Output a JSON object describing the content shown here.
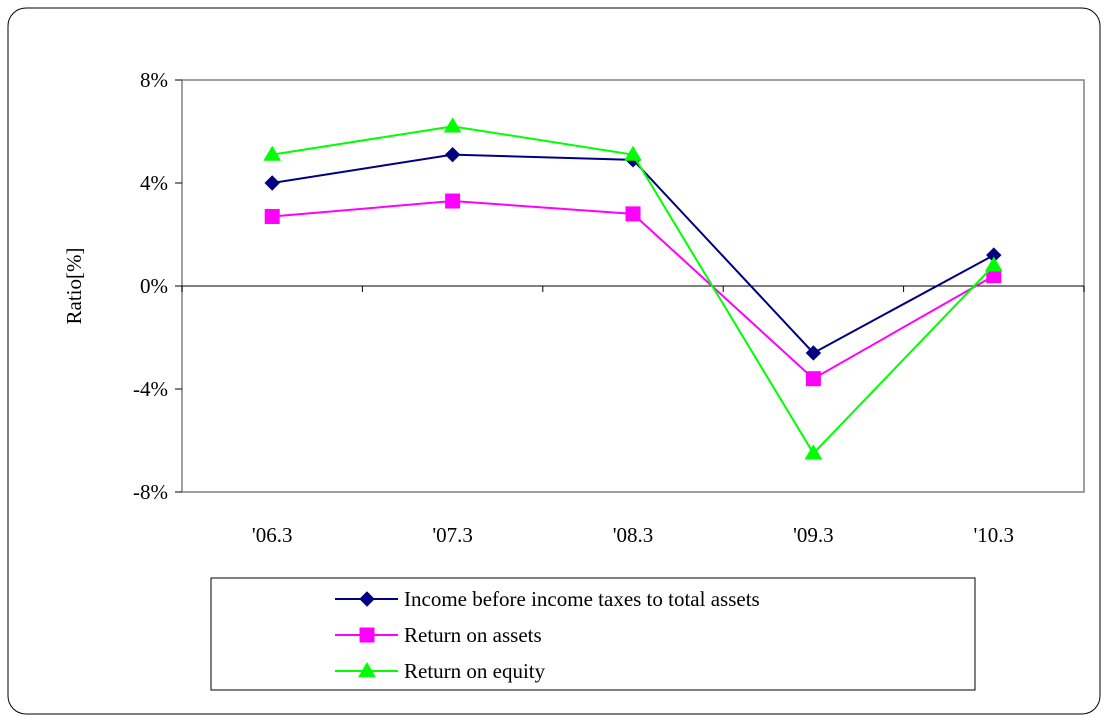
{
  "chart_data": {
    "type": "line",
    "title": "",
    "xlabel": "",
    "ylabel": "Ratio[%]",
    "categories": [
      "'06.3",
      "'07.3",
      "'08.3",
      "'09.3",
      "'10.3"
    ],
    "ylim": [
      -8,
      8
    ],
    "yticks": [
      -8,
      -4,
      0,
      4,
      8
    ],
    "ytick_labels": [
      "-8%",
      "-4%",
      "0%",
      "4%",
      "8%"
    ],
    "grid": false,
    "legend_position": "bottom",
    "series": [
      {
        "name": "Income before income taxes to total assets",
        "values": [
          4.0,
          5.1,
          4.9,
          -2.6,
          1.2
        ],
        "color": "#000080",
        "marker": "diamond"
      },
      {
        "name": "Return on assets",
        "values": [
          2.7,
          3.3,
          2.8,
          -3.6,
          0.4
        ],
        "color": "#ff00ff",
        "marker": "square"
      },
      {
        "name": "Return on equity",
        "values": [
          5.1,
          6.2,
          5.1,
          -6.5,
          0.8
        ],
        "color": "#00ff00",
        "marker": "triangle"
      }
    ]
  }
}
